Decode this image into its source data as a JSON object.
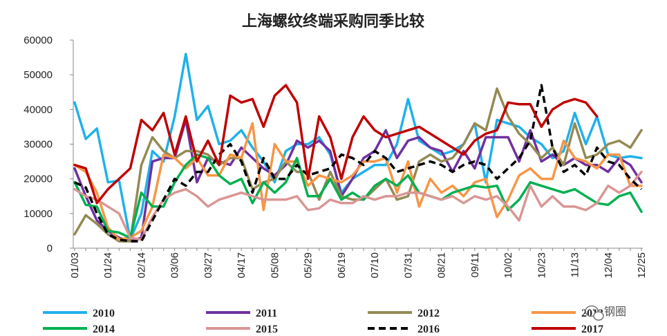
{
  "chart_data": {
    "type": "line",
    "title": "上海螺纹终端采购同季比较",
    "xlabel": "",
    "ylabel": "",
    "ylim": [
      0,
      60000
    ],
    "yticks": [
      0,
      10000,
      20000,
      30000,
      40000,
      50000,
      60000
    ],
    "grid": false,
    "legend_position": "bottom",
    "x_tick_labels": [
      "01/03",
      "01/24",
      "02/14",
      "03/06",
      "03/27",
      "04/17",
      "05/08",
      "05/29",
      "06/19",
      "07/10",
      "07/31",
      "08/21",
      "09/11",
      "10/02",
      "10/23",
      "11/13",
      "12/04",
      "12/25"
    ],
    "x_points": 52,
    "series": [
      {
        "name": "2010",
        "color": "#1FB1EA",
        "dash": "solid",
        "values": [
          42000,
          31500,
          34500,
          19000,
          19500,
          2500,
          10000,
          28000,
          25000,
          38000,
          56000,
          37000,
          41000,
          30000,
          31000,
          34000,
          29000,
          25000,
          19000,
          28000,
          30000,
          30000,
          32000,
          27000,
          16000,
          20000,
          22000,
          24000,
          24000,
          30000,
          43000,
          31000,
          29000,
          27000,
          28000,
          30000,
          36000,
          19000,
          37000,
          36000,
          35000,
          32000,
          30000,
          26000,
          28000,
          39000,
          30000,
          38000,
          27000,
          26000,
          26500,
          26000
        ]
      },
      {
        "name": "2011",
        "color": "#7030A0",
        "dash": "solid",
        "values": [
          23000,
          15000,
          8000,
          5000,
          3000,
          2000,
          3000,
          25000,
          26000,
          26000,
          37000,
          19000,
          26000,
          25000,
          24000,
          29000,
          26000,
          23000,
          21000,
          24000,
          31000,
          29000,
          31000,
          28000,
          15000,
          20000,
          26000,
          28000,
          34000,
          26000,
          31000,
          32000,
          29000,
          28000,
          22000,
          28000,
          23000,
          32000,
          32000,
          32000,
          25000,
          34000,
          25000,
          27000,
          24000,
          26000,
          24000,
          24000,
          22000,
          26000,
          24000,
          19000
        ]
      },
      {
        "name": "2012",
        "color": "#948A54",
        "dash": "solid",
        "values": [
          4000,
          9500,
          7000,
          4000,
          2000,
          2000,
          24000,
          32000,
          28000,
          26000,
          28000,
          28000,
          27000,
          24000,
          26000,
          26000,
          17000,
          19000,
          20000,
          25000,
          22000,
          22000,
          14000,
          22000,
          15000,
          14000,
          14000,
          17000,
          20000,
          14000,
          15000,
          25000,
          27000,
          25000,
          26000,
          30000,
          36000,
          34000,
          46000,
          38000,
          33000,
          30000,
          26000,
          29000,
          24000,
          36000,
          26000,
          27000,
          30000,
          31000,
          29000,
          34000
        ]
      },
      {
        "name": "2013",
        "color": "#F79646",
        "dash": "solid",
        "values": [
          24000,
          22000,
          16000,
          6000,
          2500,
          3000,
          5000,
          12000,
          27000,
          26000,
          23000,
          26000,
          21000,
          21000,
          27000,
          26000,
          36000,
          11000,
          30000,
          25000,
          25000,
          18000,
          21000,
          20000,
          19000,
          21000,
          25000,
          25000,
          26000,
          16000,
          25000,
          12000,
          20000,
          16000,
          18000,
          15000,
          19000,
          20000,
          9000,
          14000,
          21000,
          23000,
          20000,
          20000,
          31000,
          26000,
          25000,
          23000,
          27000,
          27000,
          18000,
          18000
        ]
      },
      {
        "name": "2014",
        "color": "#00B050",
        "dash": "solid",
        "values": [
          19000,
          12500,
          12000,
          5000,
          4500,
          3000,
          16000,
          12000,
          12000,
          19000,
          24000,
          27000,
          26000,
          21000,
          18500,
          20000,
          13000,
          19000,
          16000,
          19000,
          26000,
          15000,
          15000,
          20000,
          14000,
          16000,
          14000,
          18000,
          20000,
          18000,
          21000,
          16000,
          15000,
          14000,
          16000,
          17000,
          18000,
          17500,
          18000,
          11000,
          14000,
          19000,
          18000,
          17000,
          16000,
          17000,
          15000,
          13000,
          12500,
          15000,
          16000,
          10500
        ]
      },
      {
        "name": "2015",
        "color": "#D99694",
        "dash": "solid",
        "values": [
          17000,
          15000,
          14000,
          12000,
          10000,
          3000,
          2500,
          9000,
          14000,
          16000,
          17000,
          15000,
          12000,
          14000,
          15000,
          16000,
          15000,
          14000,
          14000,
          14000,
          15000,
          11000,
          11500,
          14000,
          13000,
          13000,
          15000,
          14000,
          15000,
          15000,
          16000,
          16000,
          15000,
          14000,
          15000,
          13000,
          15000,
          14000,
          15000,
          12000,
          8000,
          18000,
          12000,
          15000,
          12000,
          12000,
          11000,
          13000,
          18000,
          16000,
          18000,
          22000
        ]
      },
      {
        "name": "2016",
        "color": "#000000",
        "dash": "dashed",
        "values": [
          19000,
          17500,
          10000,
          4000,
          2500,
          2000,
          2000,
          8000,
          14000,
          20000,
          18000,
          22000,
          22000,
          27000,
          30000,
          25000,
          16000,
          26000,
          20000,
          20000,
          24000,
          21000,
          22000,
          23000,
          27000,
          26000,
          24000,
          28000,
          26000,
          22000,
          23000,
          24000,
          25000,
          24000,
          22000,
          24000,
          25000,
          24000,
          20000,
          23000,
          26000,
          31000,
          47000,
          29000,
          22000,
          24000,
          21000,
          29000,
          25000,
          24000,
          20000,
          17000
        ]
      },
      {
        "name": "2017",
        "color": "#C00000",
        "dash": "solid",
        "values": [
          24000,
          23000,
          13000,
          17000,
          20000,
          23000,
          37000,
          34000,
          39000,
          27000,
          38000,
          25000,
          31000,
          24000,
          44000,
          42000,
          43000,
          35000,
          44000,
          47000,
          42000,
          20000,
          38000,
          32000,
          20000,
          32000,
          38000,
          34000,
          32000,
          33000,
          34000,
          35000,
          33000,
          31000,
          29000,
          27000,
          31000,
          33000,
          34000,
          42000,
          41500,
          41500,
          35000,
          40000,
          42000,
          43000,
          42000,
          38000
        ]
      }
    ]
  },
  "watermark": {
    "text": "钢圈"
  }
}
